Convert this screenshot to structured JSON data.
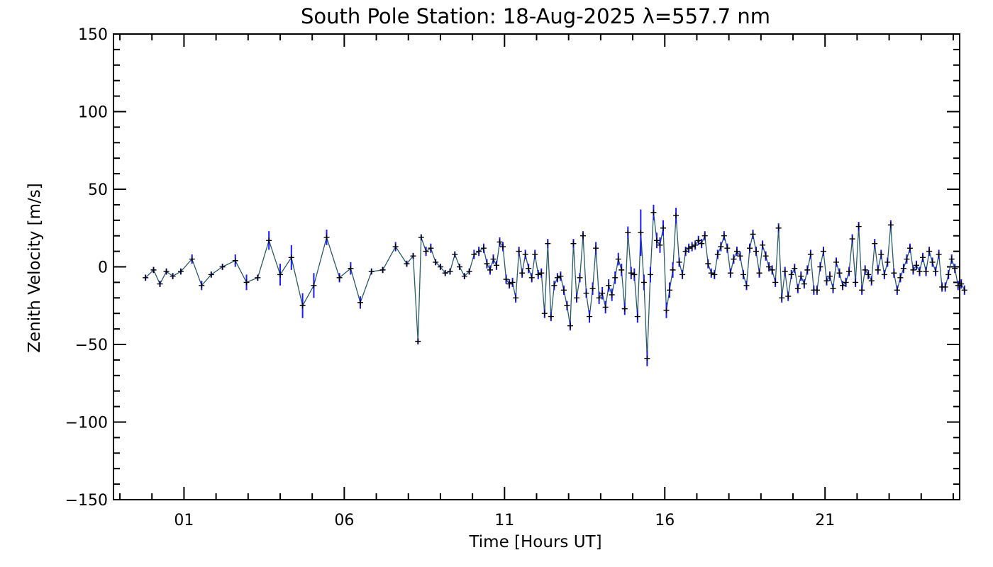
{
  "chart_data": {
    "type": "line",
    "title": "South Pole Station: 18-Aug-2025 λ=557.7 nm",
    "xlabel": "Time [Hours UT]",
    "ylabel": "Zenith Velocity [m/s]",
    "xlim": [
      -1.2,
      25.2
    ],
    "ylim": [
      -150,
      150
    ],
    "x_tick_labels": [
      {
        "value": 1,
        "label": "01"
      },
      {
        "value": 6,
        "label": "06"
      },
      {
        "value": 11,
        "label": "11"
      },
      {
        "value": 16,
        "label": "16"
      },
      {
        "value": 21,
        "label": "21"
      }
    ],
    "y_tick_labels": [
      {
        "value": 150,
        "label": "150"
      },
      {
        "value": 100,
        "label": "100"
      },
      {
        "value": 50,
        "label": "50"
      },
      {
        "value": 0,
        "label": "0"
      },
      {
        "value": -50,
        "label": "−50"
      },
      {
        "value": -100,
        "label": "−100"
      },
      {
        "value": -150,
        "label": "−150"
      }
    ],
    "grid": false,
    "colors": {
      "line": "#2a5a6a",
      "marker": "#000000",
      "error_bar": "#1a1aff"
    },
    "series": [
      {
        "values_format": "[hours_ut, velocity_m_per_s, error_m_per_s]",
        "points": [
          [
            -0.2,
            -7,
            2
          ],
          [
            0.05,
            -2,
            2
          ],
          [
            0.25,
            -11,
            2
          ],
          [
            0.45,
            -3,
            2
          ],
          [
            0.65,
            -6,
            2
          ],
          [
            0.9,
            -3,
            2
          ],
          [
            1.25,
            5,
            3
          ],
          [
            1.55,
            -12,
            3
          ],
          [
            1.85,
            -5,
            2
          ],
          [
            2.2,
            0,
            2
          ],
          [
            2.6,
            4,
            4
          ],
          [
            2.95,
            -10,
            5
          ],
          [
            3.3,
            -7,
            2
          ],
          [
            3.65,
            17,
            6
          ],
          [
            4.0,
            -5,
            7
          ],
          [
            4.35,
            6,
            8
          ],
          [
            4.7,
            -25,
            8
          ],
          [
            5.05,
            -12,
            8
          ],
          [
            5.45,
            19,
            5
          ],
          [
            5.85,
            -7,
            3
          ],
          [
            6.2,
            -1,
            4
          ],
          [
            6.5,
            -23,
            4
          ],
          [
            6.85,
            -3,
            2
          ],
          [
            7.2,
            -2,
            2
          ],
          [
            7.6,
            13,
            3
          ],
          [
            7.95,
            2,
            2
          ],
          [
            8.15,
            7,
            2
          ],
          [
            8.3,
            -48,
            2
          ],
          [
            8.4,
            19,
            2
          ],
          [
            8.55,
            10,
            3
          ],
          [
            8.7,
            12,
            3
          ],
          [
            8.85,
            3,
            2
          ],
          [
            9.0,
            0,
            2
          ],
          [
            9.15,
            -4,
            2
          ],
          [
            9.3,
            -3,
            2
          ],
          [
            9.45,
            8,
            2
          ],
          [
            9.6,
            0,
            2
          ],
          [
            9.75,
            -6,
            2
          ],
          [
            9.9,
            -3,
            2
          ],
          [
            10.05,
            8,
            3
          ],
          [
            10.2,
            10,
            3
          ],
          [
            10.35,
            12,
            3
          ],
          [
            10.45,
            2,
            3
          ],
          [
            10.55,
            -2,
            3
          ],
          [
            10.65,
            5,
            3
          ],
          [
            10.75,
            1,
            3
          ],
          [
            10.85,
            16,
            3
          ],
          [
            10.95,
            13,
            3
          ],
          [
            11.05,
            -8,
            3
          ],
          [
            11.15,
            -11,
            3
          ],
          [
            11.25,
            -10,
            3
          ],
          [
            11.35,
            -20,
            3
          ],
          [
            11.45,
            10,
            3
          ],
          [
            11.55,
            -4,
            3
          ],
          [
            11.65,
            8,
            3
          ],
          [
            11.75,
            -1,
            3
          ],
          [
            11.85,
            -7,
            3
          ],
          [
            11.95,
            8,
            3
          ],
          [
            12.05,
            -5,
            3
          ],
          [
            12.15,
            -4,
            3
          ],
          [
            12.25,
            -30,
            3
          ],
          [
            12.35,
            15,
            3
          ],
          [
            12.45,
            -32,
            3
          ],
          [
            12.55,
            -12,
            3
          ],
          [
            12.65,
            -7,
            3
          ],
          [
            12.75,
            -6,
            3
          ],
          [
            12.85,
            -15,
            3
          ],
          [
            12.95,
            -25,
            3
          ],
          [
            13.05,
            -38,
            3
          ],
          [
            13.15,
            15,
            3
          ],
          [
            13.25,
            -20,
            3
          ],
          [
            13.35,
            -7,
            3
          ],
          [
            13.45,
            20,
            3
          ],
          [
            13.55,
            -17,
            3
          ],
          [
            13.65,
            -32,
            4
          ],
          [
            13.75,
            -14,
            4
          ],
          [
            13.85,
            12,
            4
          ],
          [
            13.95,
            -20,
            4
          ],
          [
            14.05,
            -17,
            4
          ],
          [
            14.15,
            -26,
            4
          ],
          [
            14.25,
            -12,
            4
          ],
          [
            14.35,
            -18,
            4
          ],
          [
            14.45,
            -7,
            4
          ],
          [
            14.55,
            5,
            4
          ],
          [
            14.65,
            -2,
            4
          ],
          [
            14.75,
            -27,
            4
          ],
          [
            14.85,
            22,
            4
          ],
          [
            14.95,
            -4,
            4
          ],
          [
            15.05,
            -5,
            4
          ],
          [
            15.15,
            -32,
            4
          ],
          [
            15.25,
            22,
            15
          ],
          [
            15.35,
            -10,
            5
          ],
          [
            15.45,
            -59,
            5
          ],
          [
            15.55,
            -5,
            5
          ],
          [
            15.65,
            35,
            5
          ],
          [
            15.75,
            17,
            5
          ],
          [
            15.85,
            14,
            5
          ],
          [
            15.95,
            25,
            5
          ],
          [
            16.05,
            -28,
            5
          ],
          [
            16.15,
            -15,
            5
          ],
          [
            16.25,
            -2,
            5
          ],
          [
            16.35,
            33,
            5
          ],
          [
            16.45,
            3,
            3
          ],
          [
            16.55,
            -5,
            3
          ],
          [
            16.65,
            10,
            3
          ],
          [
            16.75,
            12,
            3
          ],
          [
            16.85,
            13,
            3
          ],
          [
            16.95,
            14,
            3
          ],
          [
            17.05,
            17,
            3
          ],
          [
            17.15,
            15,
            3
          ],
          [
            17.25,
            20,
            3
          ],
          [
            17.35,
            2,
            3
          ],
          [
            17.45,
            -4,
            3
          ],
          [
            17.55,
            -5,
            3
          ],
          [
            17.65,
            8,
            3
          ],
          [
            17.75,
            13,
            3
          ],
          [
            17.85,
            20,
            3
          ],
          [
            17.95,
            12,
            3
          ],
          [
            18.05,
            -4,
            3
          ],
          [
            18.15,
            5,
            3
          ],
          [
            18.25,
            10,
            3
          ],
          [
            18.35,
            7,
            3
          ],
          [
            18.45,
            -5,
            3
          ],
          [
            18.55,
            -12,
            3
          ],
          [
            18.65,
            12,
            3
          ],
          [
            18.75,
            21,
            3
          ],
          [
            18.85,
            10,
            3
          ],
          [
            18.95,
            -4,
            3
          ],
          [
            19.05,
            14,
            3
          ],
          [
            19.15,
            7,
            3
          ],
          [
            19.25,
            0,
            3
          ],
          [
            19.35,
            -2,
            3
          ],
          [
            19.45,
            -10,
            3
          ],
          [
            19.55,
            25,
            3
          ],
          [
            19.65,
            -20,
            3
          ],
          [
            19.75,
            -3,
            3
          ],
          [
            19.85,
            -19,
            3
          ],
          [
            19.95,
            -5,
            3
          ],
          [
            20.05,
            -1,
            3
          ],
          [
            20.15,
            -14,
            3
          ],
          [
            20.25,
            -6,
            3
          ],
          [
            20.35,
            -11,
            3
          ],
          [
            20.45,
            -2,
            3
          ],
          [
            20.55,
            8,
            3
          ],
          [
            20.65,
            -15,
            3
          ],
          [
            20.75,
            -15,
            3
          ],
          [
            20.85,
            0,
            3
          ],
          [
            20.95,
            10,
            3
          ],
          [
            21.05,
            -9,
            3
          ],
          [
            21.15,
            -6,
            3
          ],
          [
            21.25,
            -14,
            3
          ],
          [
            21.35,
            3,
            3
          ],
          [
            21.45,
            -4,
            3
          ],
          [
            21.55,
            -12,
            3
          ],
          [
            21.65,
            -10,
            3
          ],
          [
            21.75,
            -3,
            3
          ],
          [
            21.85,
            18,
            3
          ],
          [
            21.95,
            -10,
            3
          ],
          [
            22.05,
            26,
            3
          ],
          [
            22.15,
            -15,
            3
          ],
          [
            22.25,
            -2,
            3
          ],
          [
            22.35,
            -5,
            3
          ],
          [
            22.45,
            -9,
            3
          ],
          [
            22.55,
            15,
            3
          ],
          [
            22.65,
            -2,
            3
          ],
          [
            22.75,
            8,
            3
          ],
          [
            22.85,
            -5,
            3
          ],
          [
            22.95,
            3,
            3
          ],
          [
            23.05,
            27,
            3
          ],
          [
            23.15,
            -4,
            3
          ],
          [
            23.25,
            -15,
            3
          ],
          [
            23.35,
            -7,
            3
          ],
          [
            23.45,
            -1,
            3
          ],
          [
            23.55,
            5,
            3
          ],
          [
            23.65,
            12,
            3
          ],
          [
            23.75,
            -2,
            3
          ],
          [
            23.85,
            1,
            3
          ],
          [
            23.95,
            -3,
            3
          ],
          [
            24.05,
            6,
            3
          ],
          [
            24.15,
            -3,
            3
          ],
          [
            24.25,
            10,
            3
          ],
          [
            24.35,
            3,
            3
          ],
          [
            24.45,
            -3,
            3
          ],
          [
            24.55,
            8,
            3
          ],
          [
            24.65,
            -13,
            3
          ],
          [
            24.75,
            -13,
            3
          ],
          [
            24.85,
            -5,
            3
          ],
          [
            24.95,
            5,
            3
          ],
          [
            25.05,
            -1,
            3
          ],
          [
            25.15,
            -12,
            3
          ],
          [
            25.25,
            -11,
            3
          ],
          [
            25.35,
            -15,
            3
          ]
        ]
      }
    ]
  }
}
